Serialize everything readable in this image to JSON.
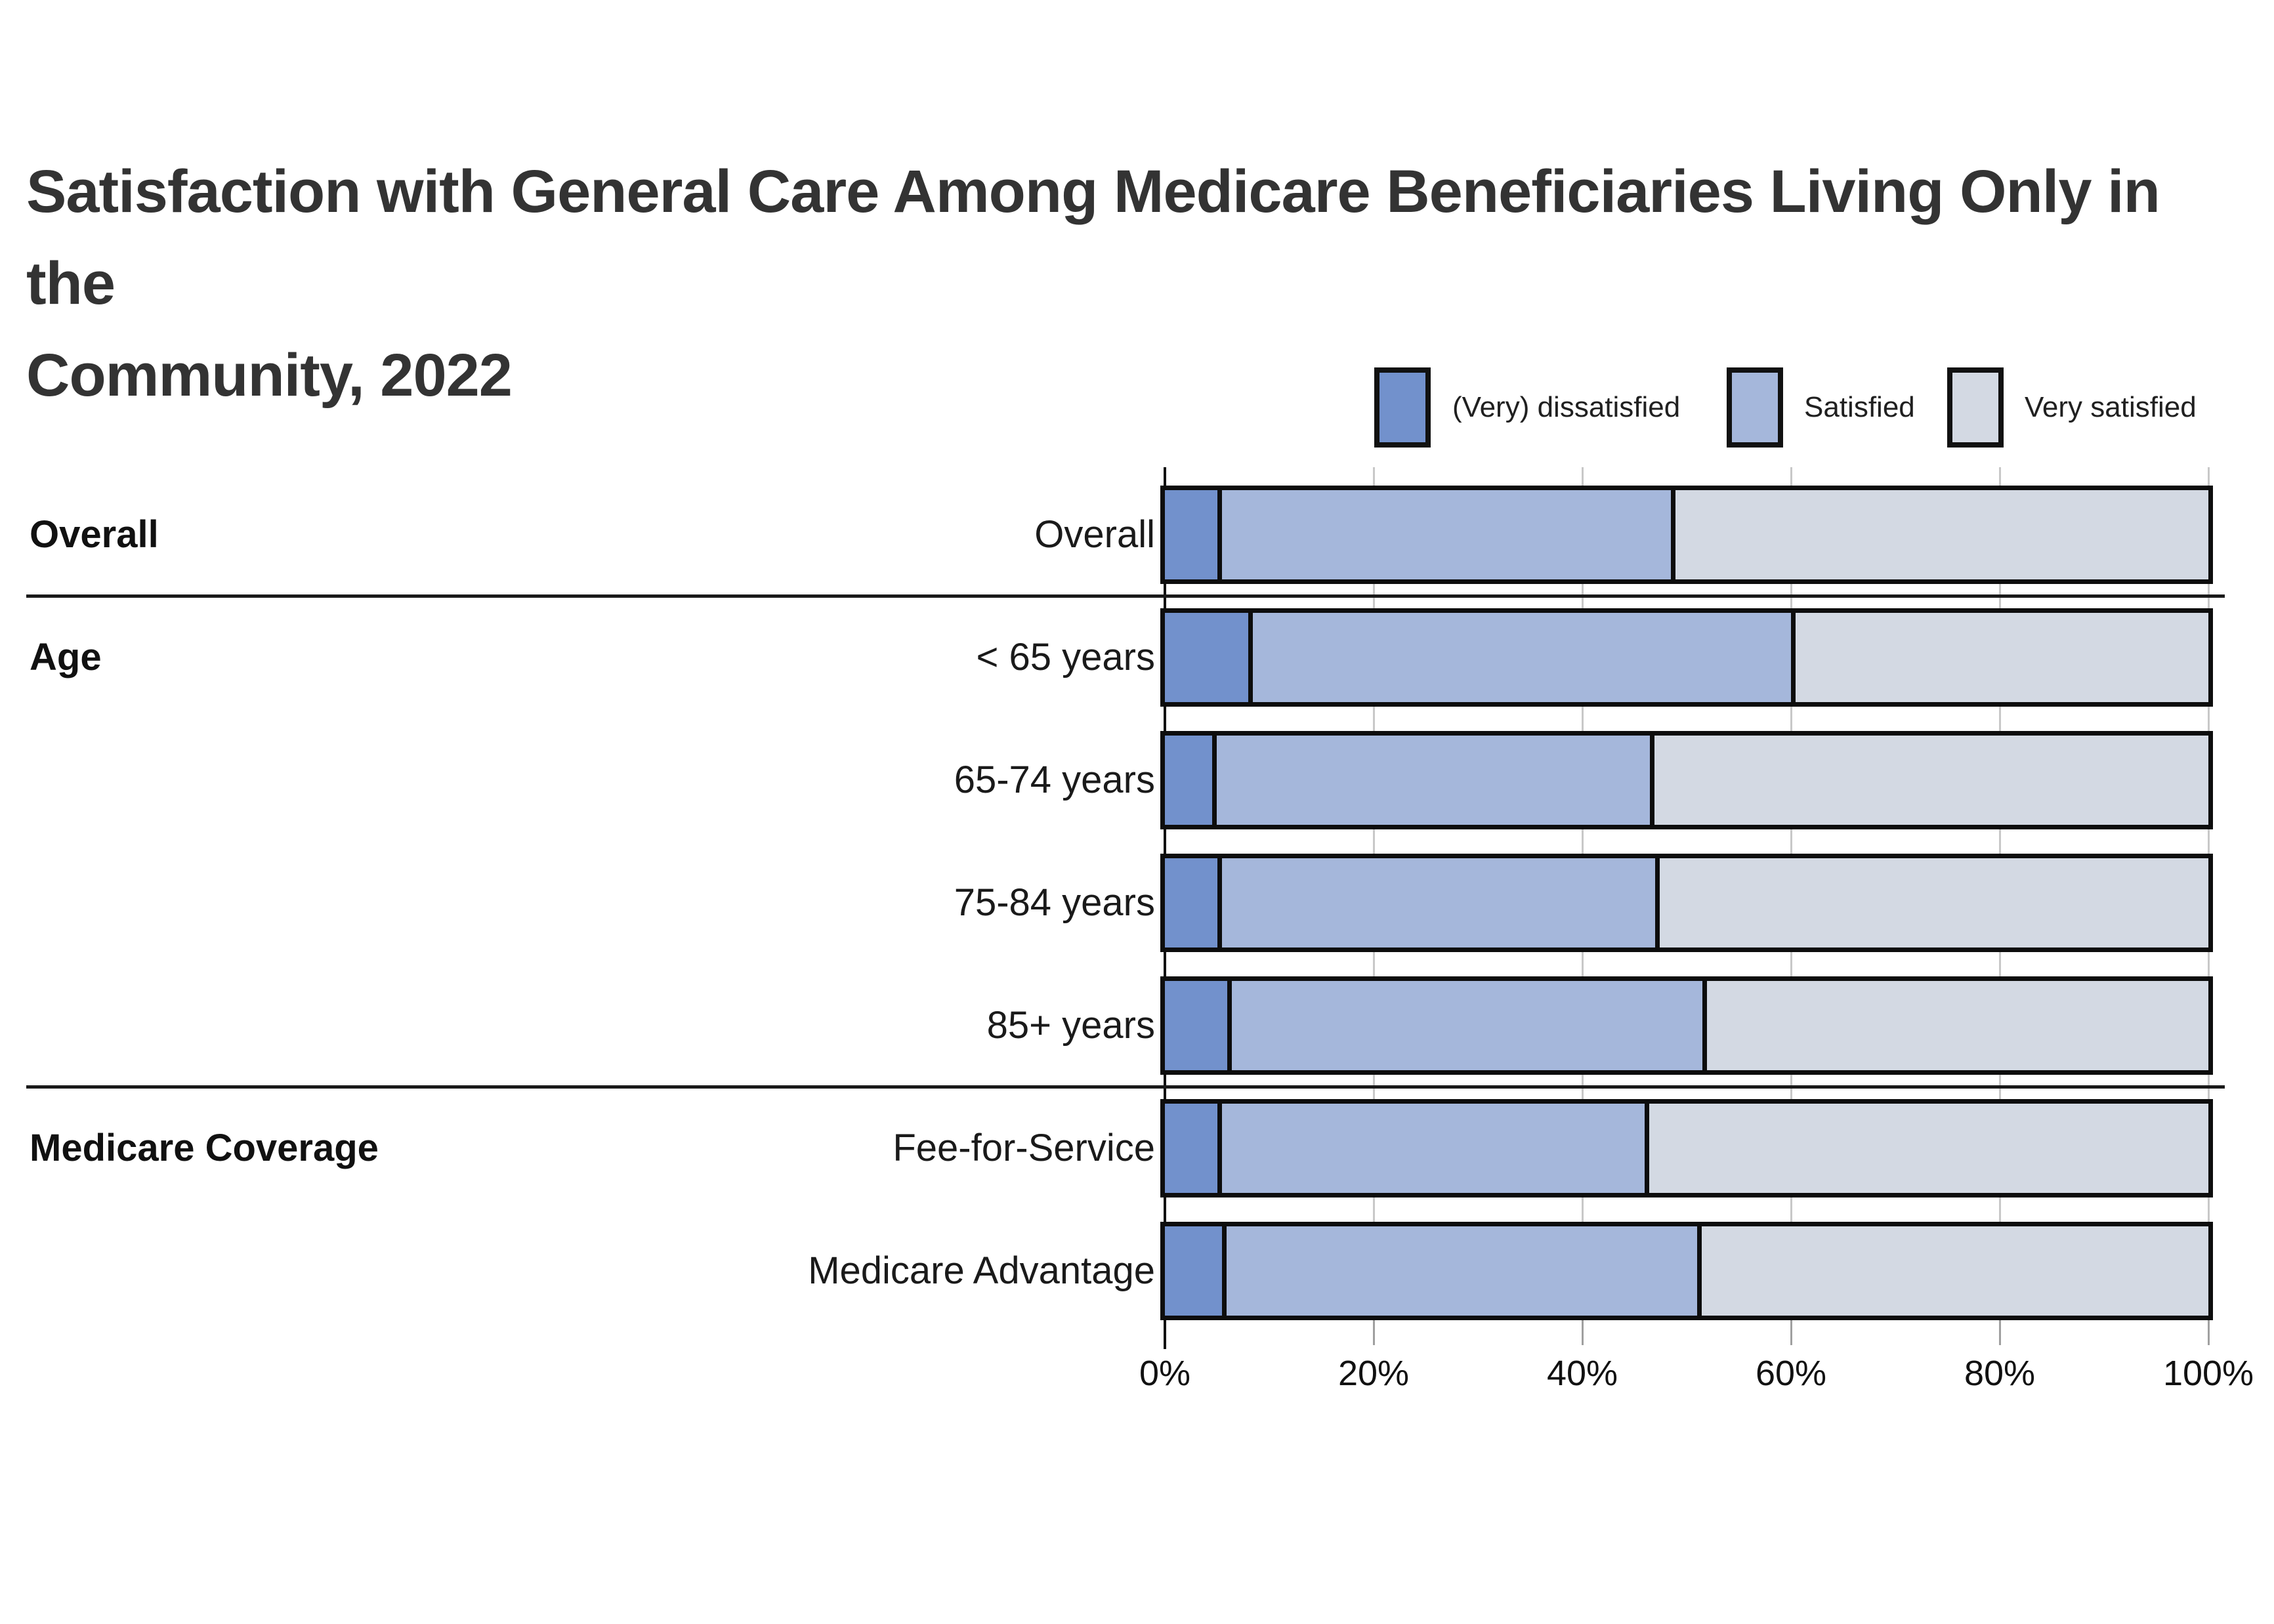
{
  "title": {
    "line1": "Satisfaction with General Care Among Medicare Beneficiaries Living Only in the",
    "line2": "Community, 2022"
  },
  "legend": [
    {
      "label": "(Very) dissatisfied",
      "color": "#7291cc"
    },
    {
      "label": "Satisfied",
      "color": "#a5b7db"
    },
    {
      "label": "Very satisfied",
      "color": "#d3d9e3"
    }
  ],
  "chart_data": {
    "type": "bar",
    "orientation": "horizontal",
    "stacked": true,
    "unit": "percent",
    "title": "Satisfaction with General Care Among Medicare Beneficiaries Living Only in the Community, 2022",
    "series_names": [
      "(Very) dissatisfied",
      "Satisfied",
      "Very satisfied"
    ],
    "groups": [
      {
        "group": "Overall",
        "rows": [
          {
            "label": "Overall",
            "values": [
              5,
              43.5,
              51.5
            ]
          }
        ]
      },
      {
        "group": "Age",
        "rows": [
          {
            "label": "< 65 years",
            "values": [
              8,
              52,
              40
            ]
          },
          {
            "label": "65-74 years",
            "values": [
              4.5,
              42,
              53.5
            ]
          },
          {
            "label": "75-84 years",
            "values": [
              5,
              42,
              53
            ]
          },
          {
            "label": "85+ years",
            "values": [
              6,
              45.5,
              48.5
            ]
          }
        ]
      },
      {
        "group": "Medicare Coverage",
        "rows": [
          {
            "label": "Fee-for-Service",
            "values": [
              5,
              41,
              54
            ]
          },
          {
            "label": "Medicare Advantage",
            "values": [
              5.5,
              45.5,
              49
            ]
          }
        ]
      }
    ],
    "x_axis": {
      "min": 0,
      "max": 100,
      "tick_labels": [
        "0%",
        "20%",
        "40%",
        "60%",
        "80%",
        "100%"
      ],
      "tick_values": [
        0,
        20,
        40,
        60,
        80,
        100
      ],
      "gridlines": true
    },
    "legend_position": "top-right"
  }
}
